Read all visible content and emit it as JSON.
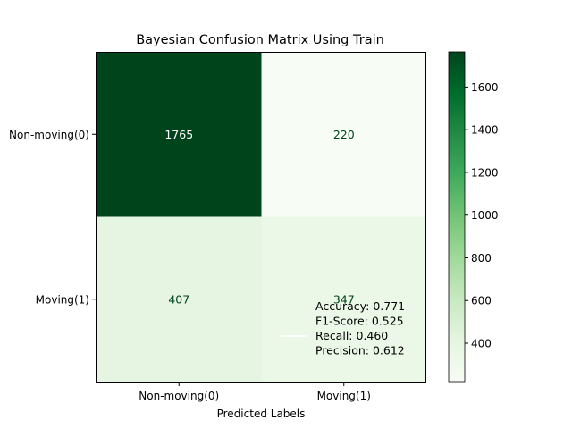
{
  "chart_data": {
    "type": "heatmap",
    "title": "Bayesian Confusion Matrix Using Train",
    "xlabel": "Predicted Labels",
    "ylabel": "",
    "x_categories": [
      "Non-moving(0)",
      "Moving(1)"
    ],
    "y_categories": [
      "Non-moving(0)",
      "Moving(1)"
    ],
    "values": [
      [
        1765,
        220
      ],
      [
        407,
        347
      ]
    ],
    "colormap": "Greens",
    "colorbar": {
      "ticks": [
        400,
        600,
        800,
        1000,
        1200,
        1400,
        1600
      ],
      "range": [
        220,
        1765
      ]
    },
    "annotation_lines": [
      "Accuracy: 0.771",
      "F1-Score: 0.525",
      "Recall: 0.460",
      "Precision: 0.612"
    ],
    "annotation_placement": "bottom-right"
  },
  "colors": {
    "low": "#f7fcf5",
    "high": "#00441b",
    "text_on_dark": "#ffffff",
    "text_on_light": "#00441b"
  }
}
